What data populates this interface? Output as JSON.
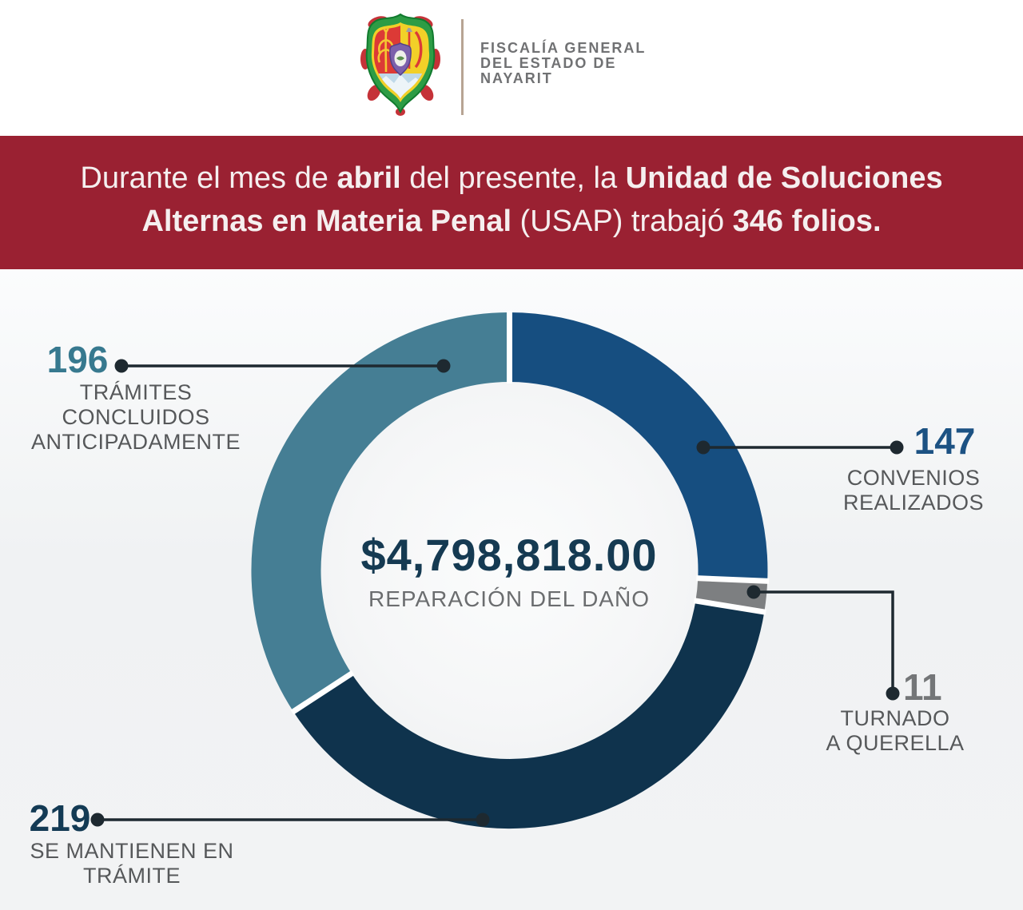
{
  "header": {
    "logo": "nayarit-coat-of-arms",
    "agency_lines": [
      "FISCALÍA GENERAL",
      "DEL ESTADO DE",
      "NAYARIT"
    ]
  },
  "banner": {
    "bg_color": "#9A2132",
    "line1": [
      {
        "t": "Durante el mes de ",
        "b": false
      },
      {
        "t": "abril",
        "b": true
      },
      {
        "t": " del presente, la ",
        "b": false
      },
      {
        "t": "Unidad de Soluciones",
        "b": true
      }
    ],
    "line2": [
      {
        "t": "Alternas en Materia Penal",
        "b": true
      },
      {
        "t": " (USAP) trabajó ",
        "b": false
      },
      {
        "t": "346 folios.",
        "b": true
      }
    ]
  },
  "chart_data": {
    "type": "pie",
    "donut": true,
    "start_angle_deg": 0,
    "clockwise": true,
    "total_folios": 346,
    "center": {
      "amount": "$4,798,818.00",
      "caption": "REPARACIÓN DEL DAÑO"
    },
    "segments": [
      {
        "label": "CONVENIOS REALIZADOS",
        "value": 147,
        "color": "#164E80",
        "number_color": "#1C5283"
      },
      {
        "label": "TURNADO A QUERELLA",
        "value": 11,
        "color": "#7D7F81",
        "number_color": "#747678"
      },
      {
        "label": "SE MANTIENEN EN TRÁMITE",
        "value": 219,
        "color": "#0F334D",
        "number_color": "#133A54"
      },
      {
        "label": "TRÁMITES CONCLUIDOS ANTICIPADAMENTE",
        "value": 196,
        "color": "#457E94",
        "number_color": "#37798F"
      }
    ],
    "gap_color": "#FFFFFF",
    "callout_line_color": "#1E2930"
  },
  "callouts": {
    "c196": {
      "number": "196",
      "label_lines": [
        "TRÁMITES CONCLUIDOS",
        "ANTICIPADAMENTE"
      ]
    },
    "c147": {
      "number": "147",
      "label_lines": [
        "CONVENIOS",
        "REALIZADOS"
      ]
    },
    "c11": {
      "number": "11",
      "label_lines": [
        "TURNADO",
        "A QUERELLA"
      ]
    },
    "c219": {
      "number": "219",
      "label_lines": [
        "SE MANTIENEN EN",
        "TRÁMITE"
      ]
    }
  }
}
